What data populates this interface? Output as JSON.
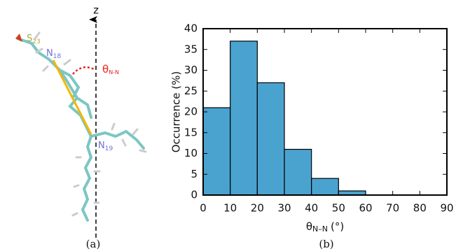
{
  "chart_data": {
    "type": "histogram",
    "bins": [
      0,
      10,
      20,
      30,
      40,
      50,
      60
    ],
    "values": [
      21,
      37,
      27,
      11,
      4,
      1
    ],
    "color": "#4aa3cf",
    "xlim": [
      0,
      90
    ],
    "xticks": [
      0,
      10,
      20,
      30,
      40,
      50,
      60,
      70,
      80,
      90
    ],
    "ylim": [
      0,
      40
    ],
    "yticks": [
      0,
      5,
      10,
      15,
      20,
      25,
      30,
      35,
      40
    ],
    "ylabel": "Occurrence (%)",
    "xlabel": {
      "symbol": "θ",
      "subscript": "N–N",
      "unit": "(°)"
    },
    "panel_label": "(b)"
  },
  "panel_a": {
    "axis_label": "z",
    "panel_label": "(a)",
    "atoms": [
      {
        "symbol": "S",
        "index": "23"
      },
      {
        "symbol": "N",
        "index": "18"
      },
      {
        "symbol": "N",
        "index": "19"
      }
    ],
    "angle": {
      "symbol": "θ",
      "subscript": "N-N"
    }
  }
}
